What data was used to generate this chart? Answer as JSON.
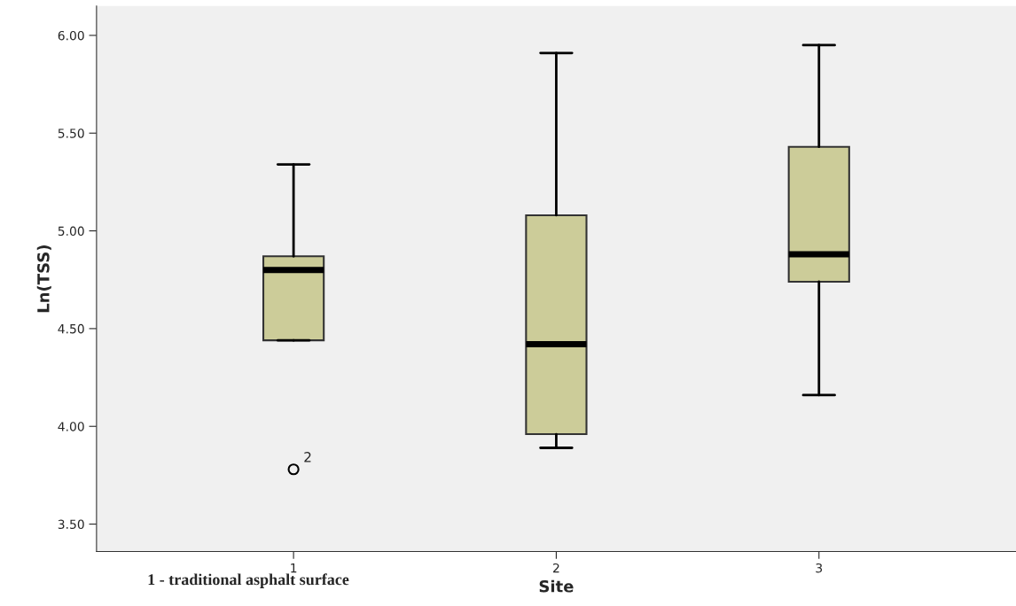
{
  "chart_data": {
    "type": "box",
    "xlabel": "Site",
    "ylabel": "Ln(TSS)",
    "categories": [
      "1",
      "2",
      "3"
    ],
    "boxes": [
      {
        "low": 4.44,
        "q1": 4.44,
        "median": 4.8,
        "q3": 4.87,
        "high": 5.34,
        "outliers": [
          3.78
        ]
      },
      {
        "low": 3.89,
        "q1": 3.96,
        "median": 4.42,
        "q3": 5.08,
        "high": 5.91
      },
      {
        "low": 4.16,
        "q1": 4.74,
        "median": 4.88,
        "q3": 5.43,
        "high": 5.95
      }
    ],
    "color": "#cccc99",
    "ylim": [
      3.36,
      6.15
    ],
    "yticks": [
      {
        "value": 3.5,
        "label": "3.50"
      },
      {
        "value": 4.0,
        "label": "4.00"
      },
      {
        "value": 4.5,
        "label": "4.50"
      },
      {
        "value": 5.0,
        "label": "5.00"
      },
      {
        "value": 5.5,
        "label": "5.50"
      },
      {
        "value": 6.0,
        "label": "6.00"
      }
    ],
    "grid": false,
    "legend": false,
    "annotations": [
      "2",
      "1 - traditional asphalt surface"
    ]
  }
}
